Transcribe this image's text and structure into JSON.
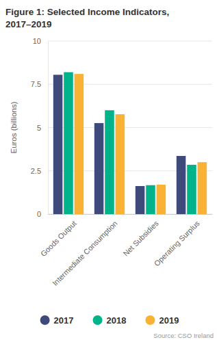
{
  "chart_data": {
    "type": "bar",
    "title": "Figure 1: Selected Income Indicators, 2017–2019",
    "y_label": "Euros (billions)",
    "source": "Source: CSO Ireland",
    "categories": [
      "Goods Output",
      "Intermediate Consumption",
      "Net Subsidies",
      "Operating Surplus"
    ],
    "series": [
      {
        "name": "2017",
        "color": "#3d4a7a",
        "values": [
          8.05,
          5.26,
          1.62,
          3.36
        ]
      },
      {
        "name": "2018",
        "color": "#00b38a",
        "values": [
          8.2,
          6.0,
          1.67,
          2.85
        ]
      },
      {
        "name": "2019",
        "color": "#f9b233",
        "values": [
          8.1,
          5.77,
          1.7,
          3.0
        ]
      }
    ],
    "ylim": [
      0,
      10
    ],
    "yticks": [
      0,
      2.5,
      5,
      7.5,
      10
    ],
    "grid": true,
    "legend": "bottom"
  }
}
